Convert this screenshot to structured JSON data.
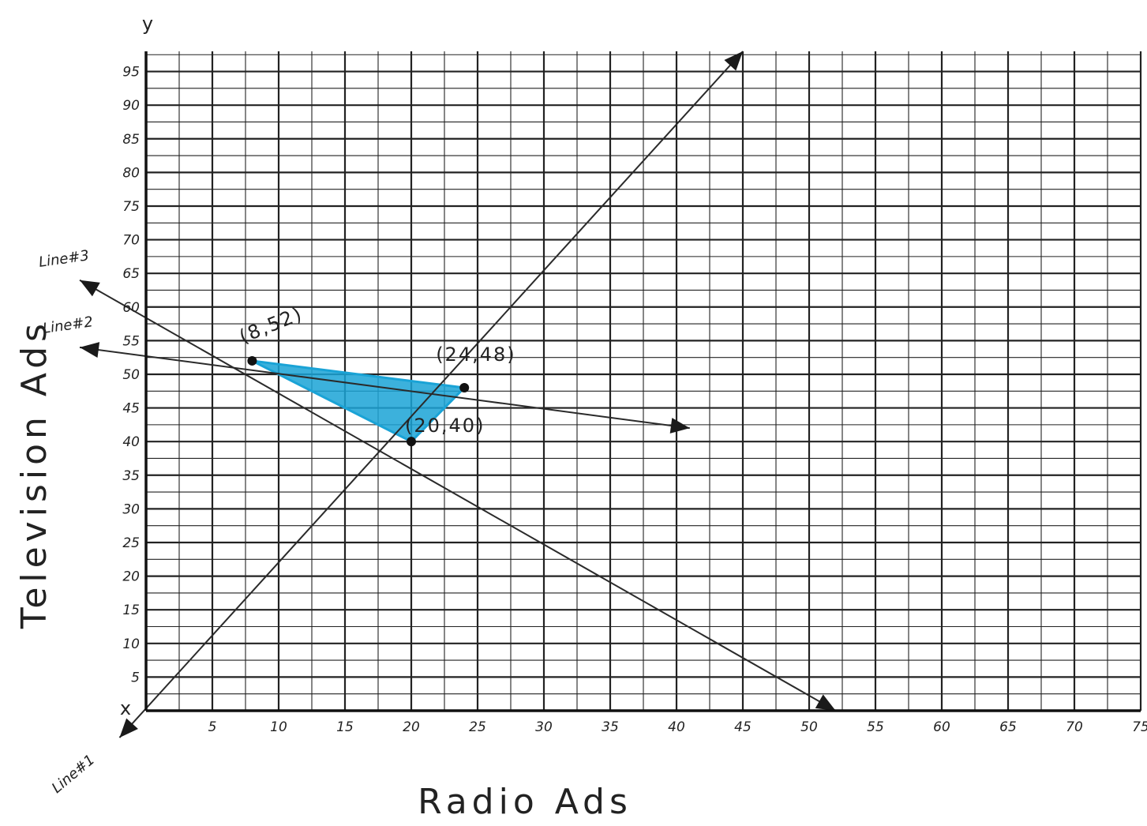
{
  "chart_data": {
    "type": "line",
    "xlabel": "Radio Ads",
    "ylabel": "Television Ads",
    "x_axis_letter": "x",
    "y_axis_letter": "y",
    "xlim": [
      0,
      75
    ],
    "ylim": [
      0,
      95
    ],
    "x_ticks": [
      5,
      10,
      15,
      20,
      25,
      30,
      35,
      40,
      45,
      50,
      55,
      60,
      65,
      70,
      75
    ],
    "x_tick_labels": [
      "5",
      "10",
      "15",
      "20",
      "25",
      "30",
      "35",
      "40",
      "45",
      "50",
      "55",
      "60",
      "65",
      "70",
      "75"
    ],
    "y_ticks": [
      5,
      10,
      15,
      20,
      25,
      30,
      35,
      40,
      45,
      50,
      55,
      60,
      65,
      70,
      75,
      80,
      85,
      90,
      95
    ],
    "y_tick_labels": [
      "5",
      "10",
      "15",
      "20",
      "25",
      "30",
      "35",
      "40",
      "45",
      "50",
      "55",
      "60",
      "65",
      "70",
      "75",
      "80",
      "85",
      "90",
      "95"
    ],
    "grid": true,
    "series": [
      {
        "name": "Line#1",
        "x": [
          -2,
          45
        ],
        "y": [
          -4,
          98
        ]
      },
      {
        "name": "Line#2",
        "x": [
          -5,
          41
        ],
        "y": [
          54,
          42
        ]
      },
      {
        "name": "Line#3",
        "x": [
          -5,
          52
        ],
        "y": [
          64,
          0
        ]
      }
    ],
    "points": [
      {
        "label": "(8,52)",
        "x": 8,
        "y": 52
      },
      {
        "label": "(24,48)",
        "x": 24,
        "y": 48
      },
      {
        "label": "(20,40)",
        "x": 20,
        "y": 40
      }
    ],
    "feasible_region": {
      "x": [
        8,
        24,
        20
      ],
      "y": [
        52,
        48,
        40
      ],
      "color": "#1aa3d6"
    },
    "colors": {
      "grid": "#222222",
      "lines": "#2a2a2a",
      "region": "#1aa3d6"
    }
  }
}
